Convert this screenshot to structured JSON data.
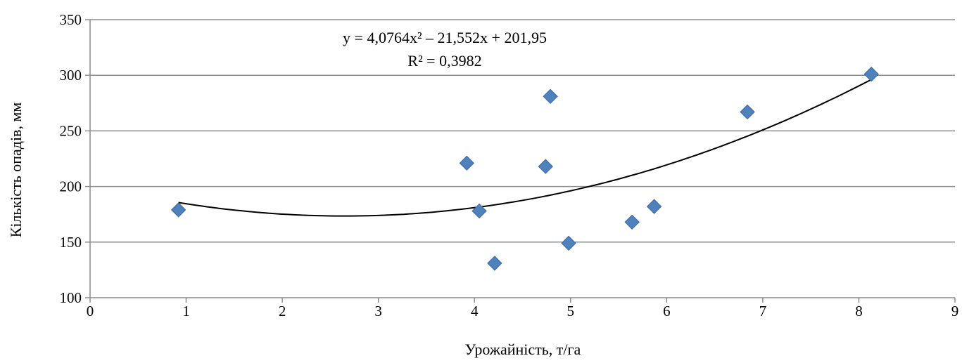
{
  "chart_data": {
    "type": "scatter",
    "title": "",
    "xlabel": "Урожайність, т/га",
    "ylabel": "Кількість опадів, мм",
    "xlim": [
      0,
      9
    ],
    "ylim": [
      100,
      350
    ],
    "x_ticks": [
      0,
      1,
      2,
      3,
      4,
      5,
      6,
      7,
      8,
      9
    ],
    "y_ticks": [
      100,
      150,
      200,
      250,
      300,
      350
    ],
    "x_tick_labels": [
      "0",
      "1",
      "2",
      "3",
      "4",
      "5",
      "6",
      "7",
      "8",
      "9"
    ],
    "y_tick_labels": [
      "100",
      "150",
      "200",
      "250",
      "300",
      "350"
    ],
    "grid": "horizontal",
    "marker": "diamond",
    "marker_color": "#4f81bd",
    "trendline_color": "#000000",
    "series": [
      {
        "x": [
          0.92,
          3.92,
          4.05,
          4.21,
          4.74,
          4.79,
          4.98,
          5.64,
          5.87,
          6.84,
          8.13
        ],
        "y": [
          179,
          221,
          178,
          131,
          218,
          281,
          149,
          168,
          182,
          267,
          301
        ]
      }
    ],
    "trendline": {
      "type": "polynomial",
      "order": 2,
      "coefficients": [
        4.0764,
        -21.552,
        201.95
      ],
      "x_range": [
        0.92,
        8.13
      ]
    },
    "annotations": {
      "equation": "y = 4,0764x² – 21,552x + 201,95",
      "r_squared": "R² = 0,3982"
    }
  }
}
